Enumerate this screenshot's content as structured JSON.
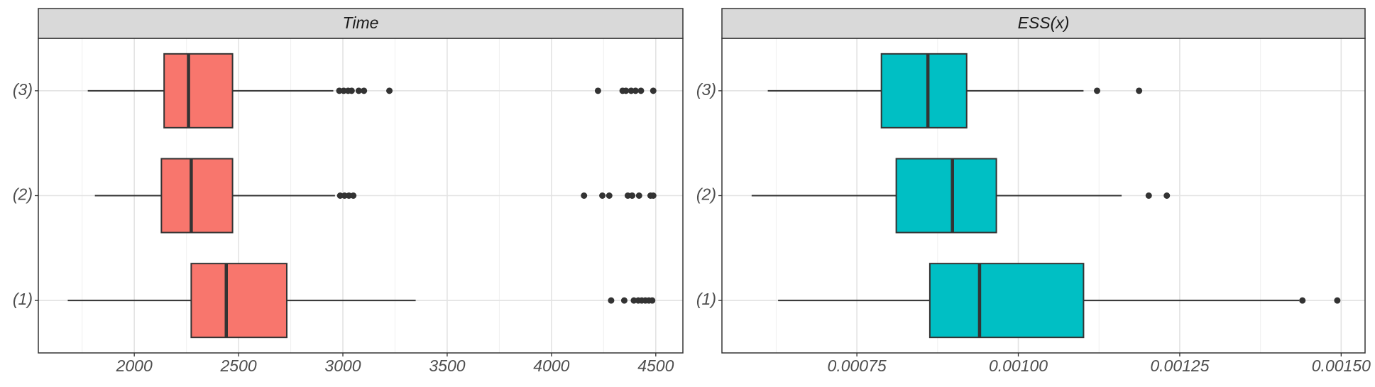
{
  "chart_data": [
    {
      "type": "boxplot",
      "title": "Time",
      "orientation": "horizontal",
      "color": "#F8766D",
      "categories": [
        "(1)",
        "(2)",
        "(3)"
      ],
      "boxes": [
        {
          "low": 1681,
          "q1": 2273,
          "median": 2441,
          "q3": 2731,
          "high": 3349,
          "outliers": [
            4286,
            4349,
            4395,
            4416,
            4433,
            4450,
            4467,
            4483
          ]
        },
        {
          "low": 1811,
          "q1": 2130,
          "median": 2273,
          "q3": 2471,
          "high": 2962,
          "outliers": [
            2987,
            3008,
            3029,
            3050,
            4156,
            4244,
            4277,
            4366,
            4387,
            4420,
            4475,
            4488
          ]
        },
        {
          "low": 1777,
          "q1": 2143,
          "median": 2260,
          "q3": 2471,
          "high": 2954,
          "outliers": [
            2983,
            3004,
            3025,
            3042,
            3076,
            3101,
            3223,
            4223,
            4341,
            4357,
            4382,
            4403,
            4429,
            4488
          ]
        }
      ],
      "xlim": [
        1540,
        4630
      ],
      "xticks": [
        2000,
        2500,
        3000,
        3500,
        4000,
        4500
      ],
      "grid": true
    },
    {
      "type": "boxplot",
      "title": "ESS(x)",
      "orientation": "horizontal",
      "color": "#00BFC4",
      "categories": [
        "(1)",
        "(2)",
        "(3)"
      ],
      "boxes": [
        {
          "low": 0.000628,
          "q1": 0.000863,
          "median": 0.00094,
          "q3": 0.001101,
          "high": 0.001435,
          "outliers": [
            0.00144,
            0.001494
          ]
        },
        {
          "low": 0.000587,
          "q1": 0.000811,
          "median": 0.000898,
          "q3": 0.000966,
          "high": 0.00116,
          "outliers": [
            0.001202,
            0.00123
          ]
        },
        {
          "low": 0.000612,
          "q1": 0.000788,
          "median": 0.00086,
          "q3": 0.00092,
          "high": 0.001101,
          "outliers": [
            0.001122,
            0.001187
          ]
        }
      ],
      "xlim": [
        0.000541,
        0.001537
      ],
      "xticks": [
        {
          "value": 0.00075,
          "label": "0.00075"
        },
        {
          "value": 0.001,
          "label": "0.00100"
        },
        {
          "value": 0.00125,
          "label": "0.00125"
        },
        {
          "value": 0.0015,
          "label": "0.00150"
        }
      ],
      "grid": true
    }
  ]
}
